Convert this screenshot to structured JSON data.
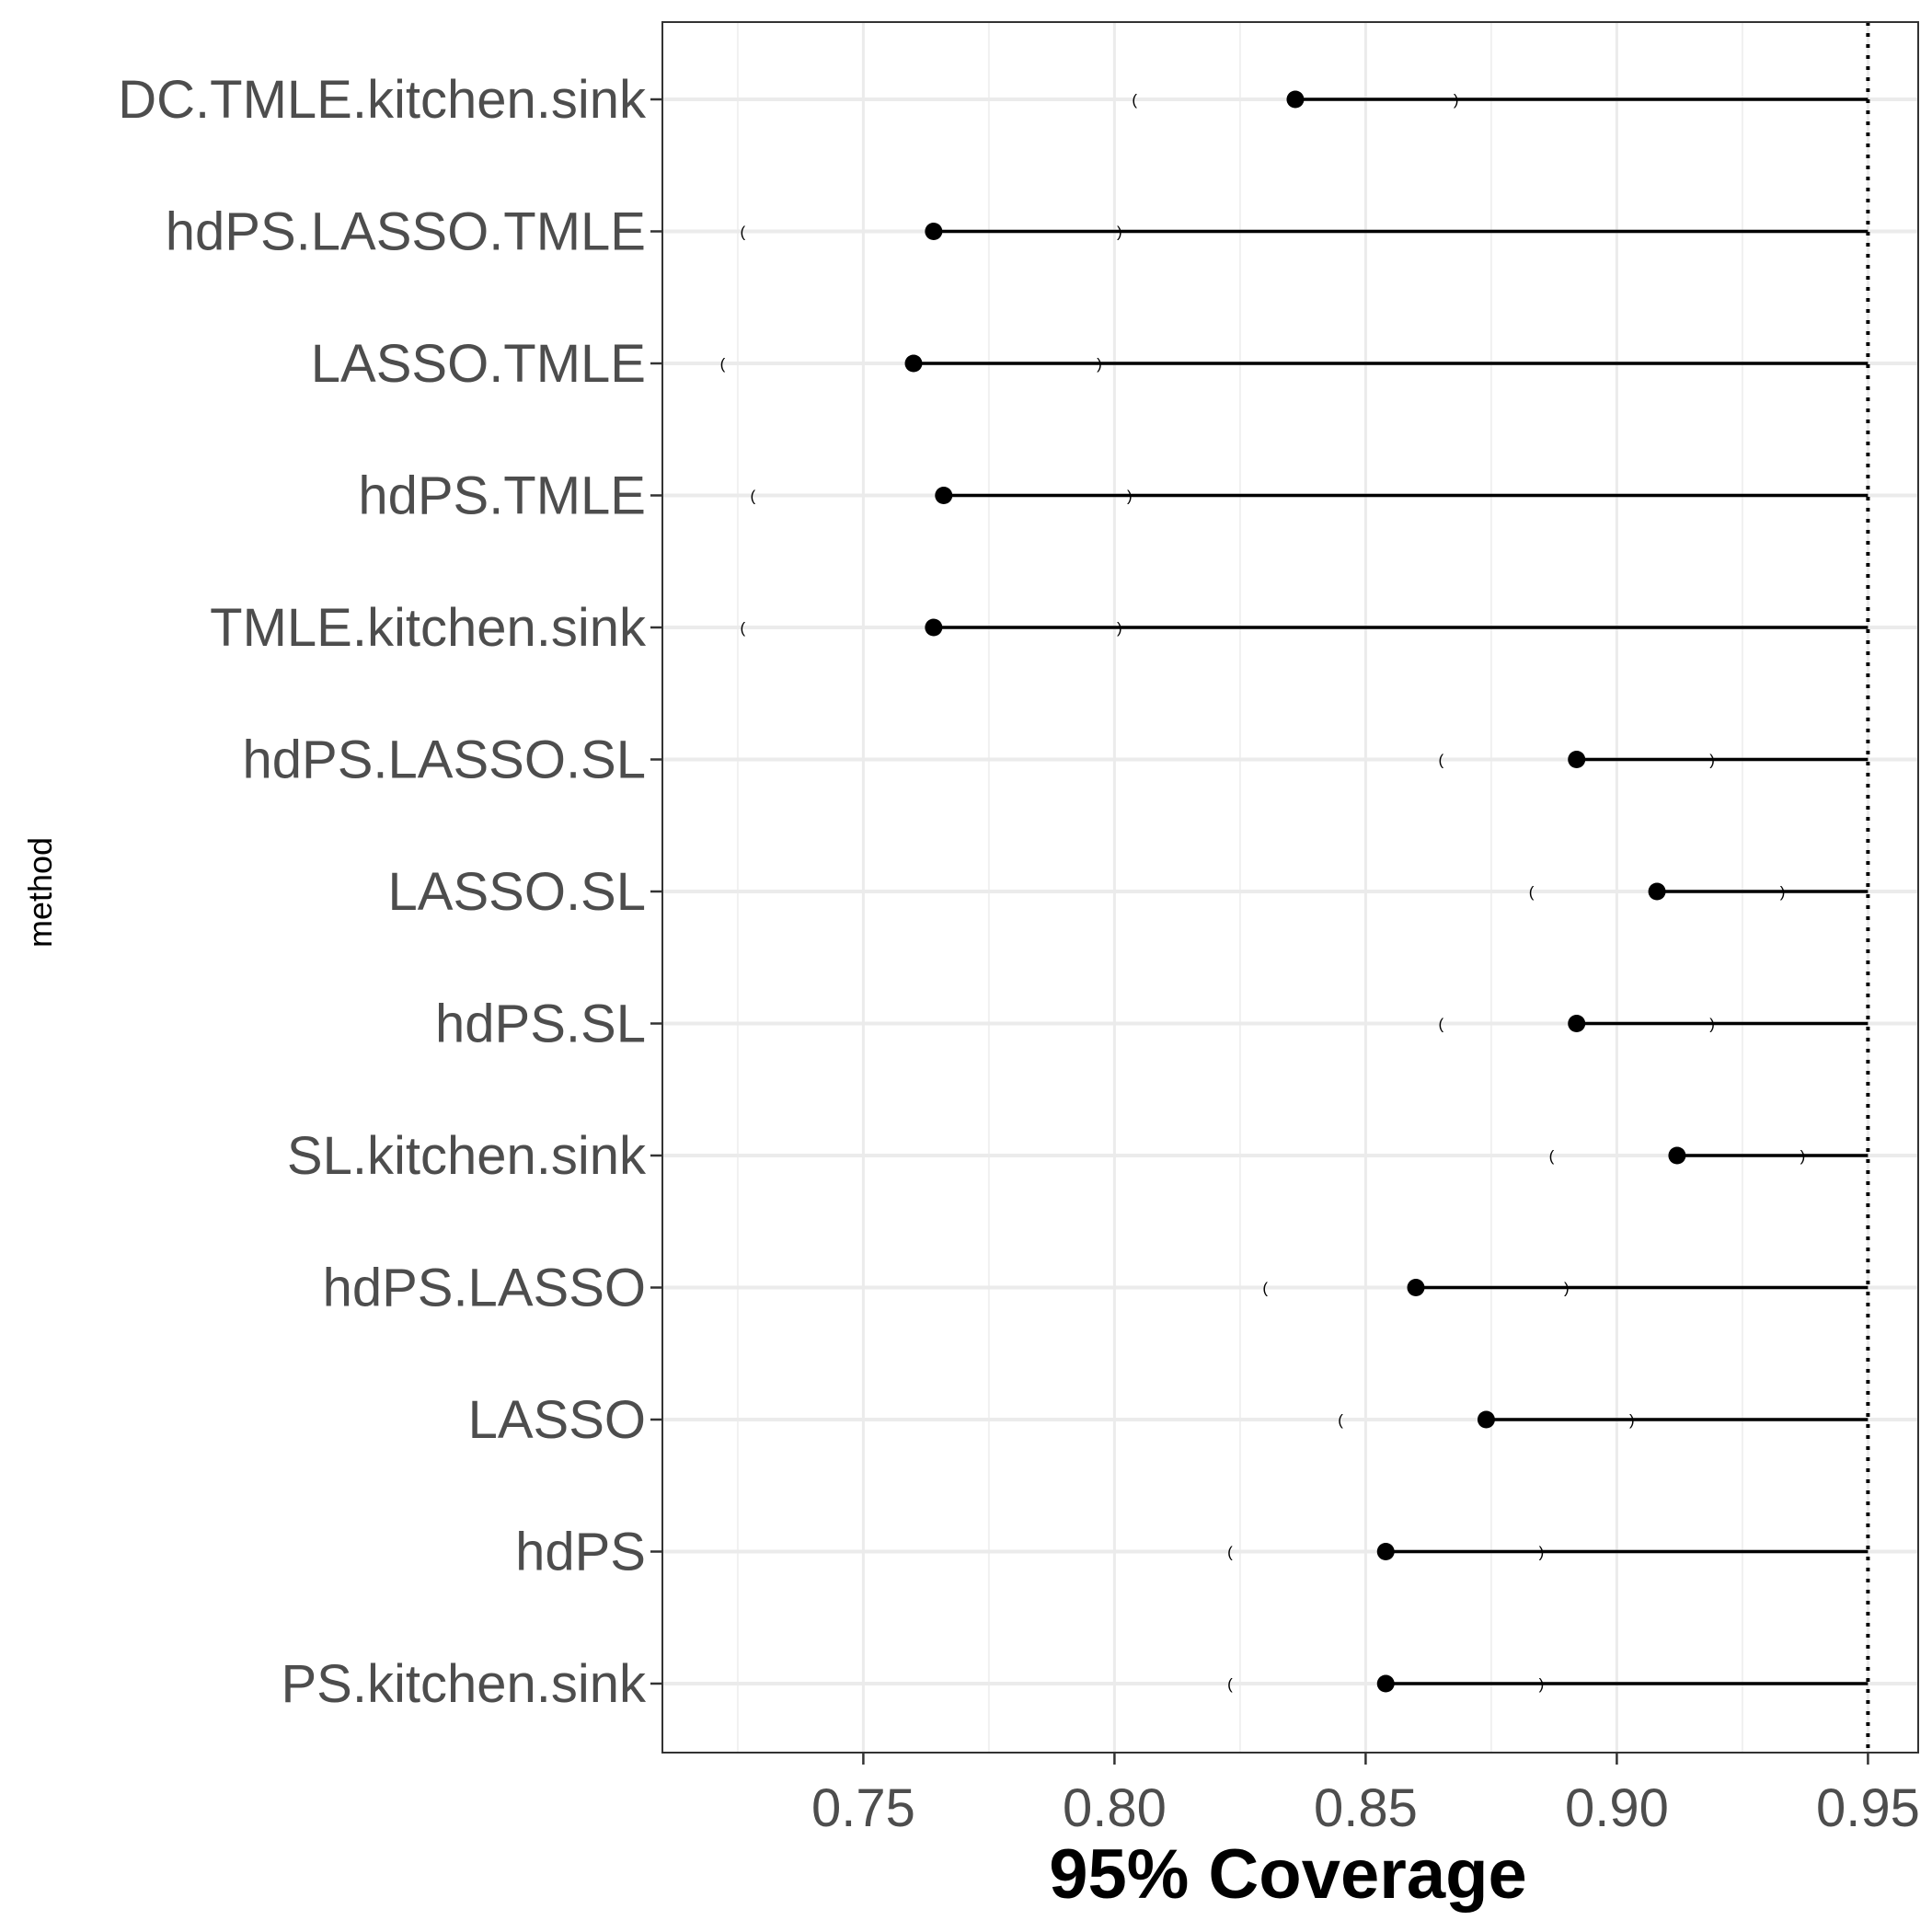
{
  "chart_data": {
    "type": "scatter",
    "xlabel": "95% Coverage",
    "ylabel": "method",
    "xlim": [
      0.71,
      0.96
    ],
    "x_ticks": [
      0.75,
      0.8,
      0.85,
      0.9,
      0.95
    ],
    "x_tick_labels": [
      "0.75",
      "0.80",
      "0.85",
      "0.90",
      "0.95"
    ],
    "reference_line": {
      "x": 0.95,
      "style": "dotted"
    },
    "grid": true,
    "categories": [
      "DC.TMLE.kitchen.sink",
      "hdPS.LASSO.TMLE",
      "LASSO.TMLE",
      "hdPS.TMLE",
      "TMLE.kitchen.sink",
      "hdPS.LASSO.SL",
      "LASSO.SL",
      "hdPS.SL",
      "SL.kitchen.sink",
      "hdPS.LASSO",
      "LASSO",
      "hdPS",
      "PS.kitchen.sink"
    ],
    "coverage": [
      0.836,
      0.764,
      0.76,
      0.766,
      0.764,
      0.892,
      0.908,
      0.892,
      0.912,
      0.86,
      0.874,
      0.854,
      0.854
    ],
    "ci_lower": [
      0.804,
      0.726,
      0.722,
      0.728,
      0.726,
      0.865,
      0.883,
      0.865,
      0.887,
      0.83,
      0.845,
      0.823,
      0.823
    ],
    "ci_upper": [
      0.868,
      0.801,
      0.797,
      0.803,
      0.801,
      0.919,
      0.933,
      0.919,
      0.937,
      0.89,
      0.903,
      0.885,
      0.885
    ],
    "ci_lower_symbol": "(",
    "ci_upper_symbol": ")"
  }
}
